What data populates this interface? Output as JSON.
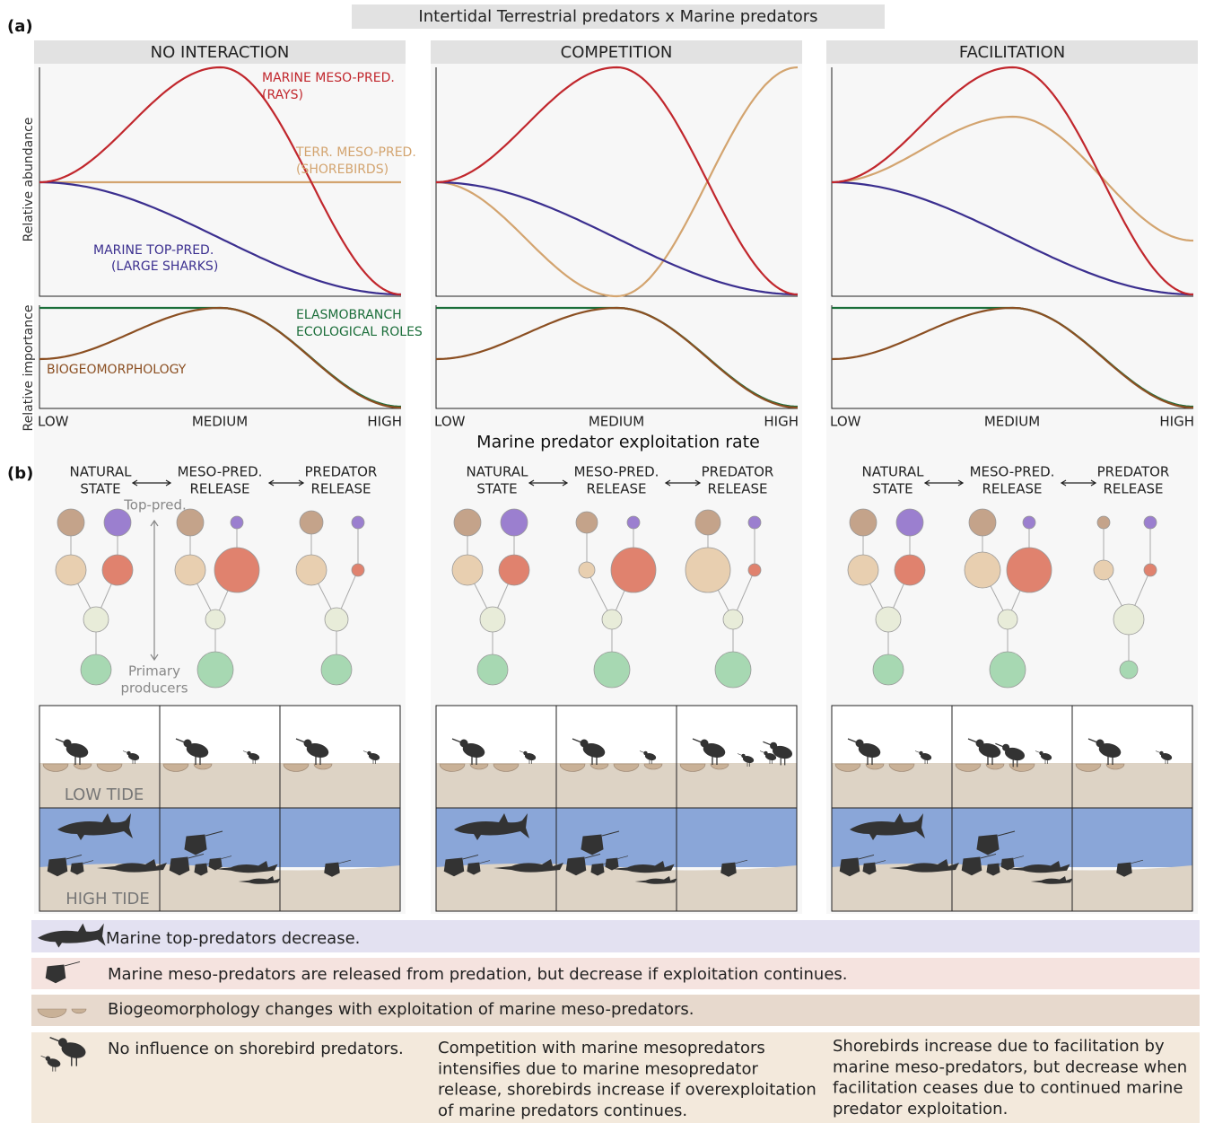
{
  "header": {
    "panel_a": "(a)",
    "panel_b": "(b)",
    "title": "Intertidal Terrestrial predators x Marine predators"
  },
  "scenarios": [
    {
      "title": "NO INTERACTION"
    },
    {
      "title": "COMPETITION"
    },
    {
      "title": "FACILITATION"
    }
  ],
  "axis": {
    "y_top": "Relative abundance",
    "y_bottom": "Relative importance",
    "x_ticks": [
      "LOW",
      "MEDIUM",
      "HIGH"
    ],
    "x_label": "Marine predator exploitation rate"
  },
  "curve_labels": {
    "marine_meso": [
      "MARINE MESO-PRED.",
      "(RAYS)"
    ],
    "terr_meso": [
      "TERR. MESO-PRED.",
      "(SHOREBIRDS)"
    ],
    "marine_top": [
      "MARINE TOP-PRED.",
      "(LARGE SHARKS)"
    ],
    "elasmo": [
      "ELASMOBRANCH",
      "ECOLOGICAL ROLES"
    ],
    "biogeo": "BIOGEOMORPHOLOGY"
  },
  "stages": [
    [
      "NATURAL",
      "STATE"
    ],
    [
      "MESO-PRED.",
      "RELEASE"
    ],
    [
      "PREDATOR",
      "RELEASE"
    ]
  ],
  "web_labels": {
    "top": "Top-pred.",
    "bottom": [
      "Primary",
      "producers"
    ]
  },
  "tide": {
    "low": "LOW TIDE",
    "high": "HIGH TIDE"
  },
  "legend": {
    "top_pred": "Marine top-predators decrease.",
    "meso_pred": "Marine meso-predators are released from predation, but decrease if exploitation continues.",
    "biogeo": "Biogeomorphology changes with exploitation of marine meso-predators.",
    "shorebirds": [
      [
        "No influence on shorebird predators."
      ],
      [
        "Competition with marine mesopredators",
        "intensifies due to marine mesopredator",
        "release, shorebirds increase if overexploitation",
        "of marine predators continues."
      ],
      [
        "Shorebirds increase due to facilitation by",
        "marine meso-predators, but decrease when",
        "facilitation ceases due to continued marine",
        "predator exploitation."
      ]
    ]
  }
}
